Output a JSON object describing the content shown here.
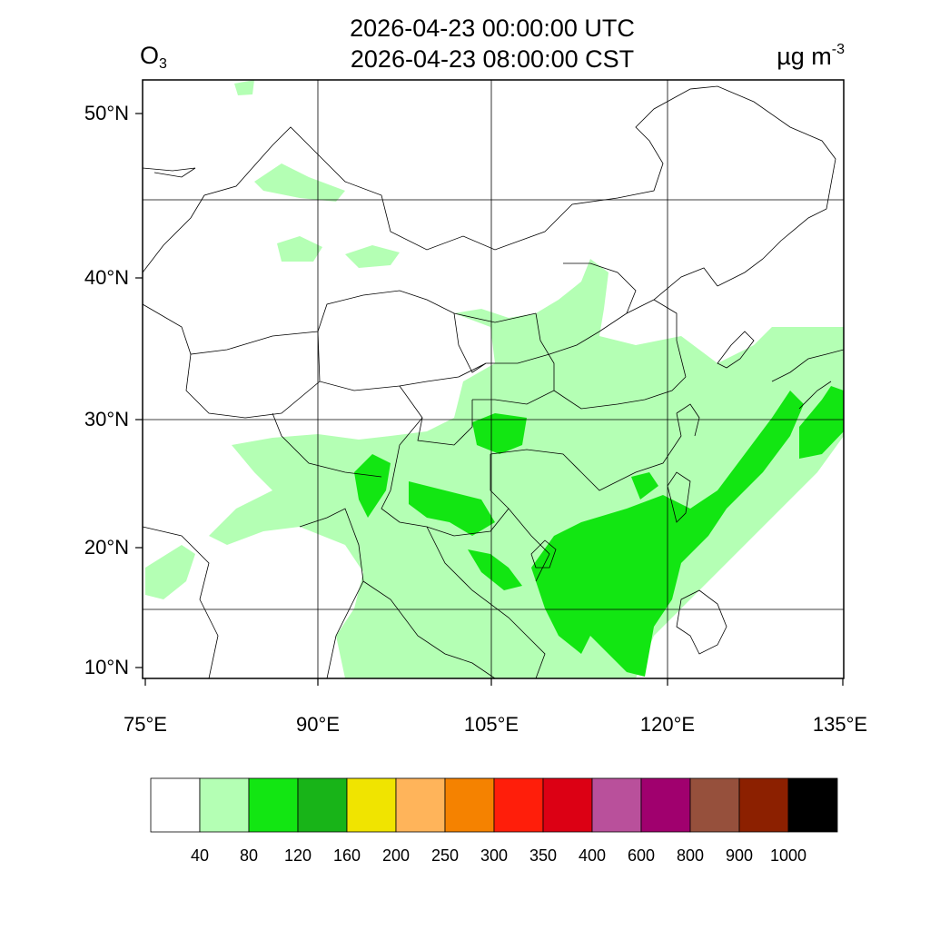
{
  "header": {
    "utc_time": "2026-04-23 00:00:00 UTC",
    "local_time": "2026-04-23 08:00:00 CST",
    "variable_main": "O",
    "variable_sub": "3",
    "unit_main": "µg m",
    "unit_sup": "-3"
  },
  "axes": {
    "lat_labels": [
      "50°N",
      "40°N",
      "30°N",
      "20°N",
      "10°N"
    ],
    "lon_labels": [
      "75°E",
      "90°E",
      "105°E",
      "120°E",
      "135°E"
    ]
  },
  "colorbar": {
    "colors": [
      "#ffffff",
      "#b4ffb4",
      "#12e612",
      "#18b418",
      "#f0e400",
      "#ffb45a",
      "#f58200",
      "#ff1e0a",
      "#dc0014",
      "#b9509b",
      "#a0006e",
      "#96503c",
      "#8c2000",
      "#000000"
    ],
    "labels": [
      "40",
      "80",
      "120",
      "160",
      "200",
      "250",
      "300",
      "350",
      "400",
      "600",
      "800",
      "900",
      "1000"
    ]
  },
  "map": {
    "light_green": "#b4ffb4",
    "green": "#12e612"
  }
}
